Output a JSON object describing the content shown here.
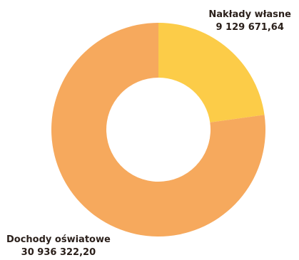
{
  "chart_data": {
    "type": "pie",
    "subtype": "donut",
    "slices": [
      {
        "label": "Nakłady własne",
        "value": 9129671.64,
        "value_text": "9 129 671,64",
        "color": "#fccc48"
      },
      {
        "label": "Dochody oświatowe",
        "value": 30936322.2,
        "value_text": "30 936 322,20",
        "color": "#f6a95d"
      }
    ],
    "legend": "none",
    "labels_position": "outside"
  }
}
